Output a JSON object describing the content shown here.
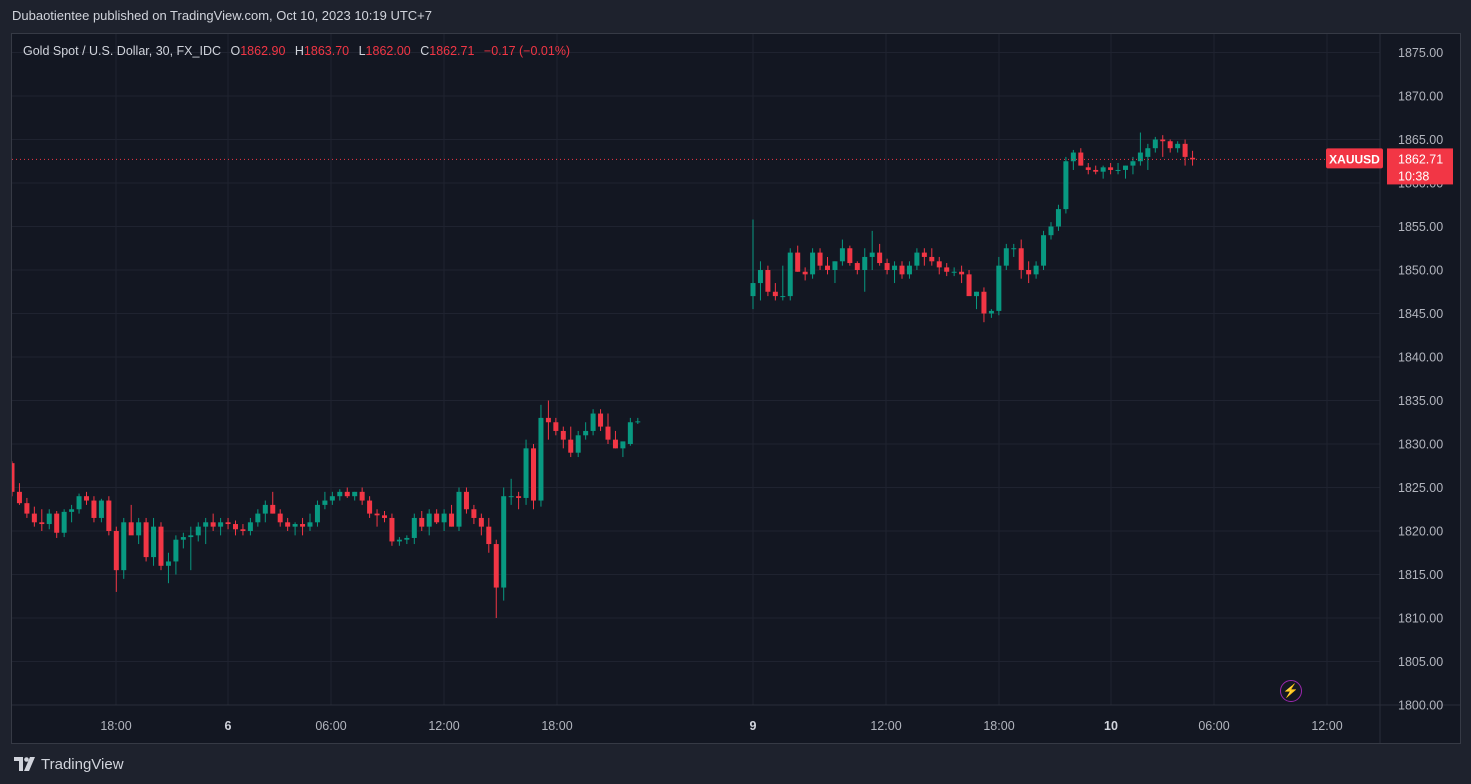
{
  "header": {
    "publisher_line": "Dubaotientee published on TradingView.com, Oct 10, 2023 10:19 UTC+7"
  },
  "legend": {
    "symbol_desc": "Gold Spot / U.S. Dollar, 30, FX_IDC",
    "o_label": "O",
    "o_value": "1862.90",
    "h_label": "H",
    "h_value": "1863.70",
    "l_label": "L",
    "l_value": "1862.00",
    "c_label": "C",
    "c_value": "1862.71",
    "change": "−0.17 (−0.01%)"
  },
  "price_tag": {
    "symbol": "XAUUSD",
    "price": "1862.71",
    "countdown": "10:38"
  },
  "footer": {
    "brand": "TradingView"
  },
  "colors": {
    "up": "#089981",
    "down": "#f23645",
    "background": "#131722",
    "grid": "#1f2330",
    "text": "#b2b5be"
  },
  "icons": {
    "footer_logo": "tradingview-logo-icon",
    "alert": "lightning-icon"
  },
  "chart_data": {
    "type": "candlestick",
    "title": "",
    "ylim": [
      1800,
      1877.5
    ],
    "y_ticks": [
      "1875.00",
      "1870.00",
      "1865.00",
      "1860.00",
      "1855.00",
      "1850.00",
      "1845.00",
      "1840.00",
      "1835.00",
      "1830.00",
      "1825.00",
      "1820.00",
      "1815.00",
      "1810.00",
      "1805.00",
      "1800.00"
    ],
    "x_ticks": [
      "18:00",
      "6",
      "06:00",
      "12:00",
      "18:00",
      "9",
      "12:00",
      "18:00",
      "10",
      "06:00",
      "12:00"
    ],
    "last_price": 1862.71,
    "sessions": [
      [
        [
          1827.8,
          1828.0,
          1824.0,
          1824.5
        ],
        [
          1824.5,
          1825.5,
          1823.0,
          1823.2
        ],
        [
          1823.2,
          1823.8,
          1821.5,
          1822.0
        ],
        [
          1822.0,
          1822.8,
          1820.5,
          1821.0
        ],
        [
          1821.0,
          1822.5,
          1820.0,
          1820.8
        ],
        [
          1820.8,
          1822.5,
          1820.2,
          1822.0
        ],
        [
          1822.0,
          1822.3,
          1819.2,
          1819.8
        ],
        [
          1819.8,
          1822.5,
          1819.3,
          1822.2
        ],
        [
          1822.2,
          1823.0,
          1821.0,
          1822.5
        ],
        [
          1822.5,
          1824.3,
          1822.0,
          1824.0
        ],
        [
          1824.0,
          1824.5,
          1823.0,
          1823.5
        ],
        [
          1823.5,
          1824.0,
          1821.0,
          1821.5
        ],
        [
          1821.5,
          1823.7,
          1821.0,
          1823.5
        ],
        [
          1823.5,
          1824.0,
          1819.5,
          1820.0
        ],
        [
          1820.0,
          1820.5,
          1813.0,
          1815.5
        ],
        [
          1815.5,
          1821.5,
          1814.5,
          1821.0
        ],
        [
          1821.0,
          1823.0,
          1820.0,
          1819.5
        ],
        [
          1819.5,
          1821.5,
          1818.5,
          1821.0
        ],
        [
          1821.0,
          1821.5,
          1816.5,
          1817.0
        ],
        [
          1817.0,
          1821.5,
          1816.0,
          1820.5
        ],
        [
          1820.5,
          1821.0,
          1815.5,
          1816.0
        ],
        [
          1816.0,
          1817.5,
          1814.0,
          1816.5
        ],
        [
          1816.5,
          1819.5,
          1815.0,
          1819.0
        ],
        [
          1819.0,
          1819.8,
          1818.0,
          1819.3
        ],
        [
          1819.3,
          1820.5,
          1815.5,
          1819.5
        ],
        [
          1819.5,
          1821.0,
          1818.8,
          1820.5
        ],
        [
          1820.5,
          1821.5,
          1818.5,
          1821.0
        ],
        [
          1821.0,
          1822.0,
          1820.0,
          1820.5
        ],
        [
          1820.5,
          1821.5,
          1819.5,
          1821.0
        ],
        [
          1821.0,
          1821.5,
          1820.2,
          1820.8
        ],
        [
          1820.8,
          1821.2,
          1819.5,
          1820.2
        ],
        [
          1820.2,
          1820.8,
          1819.5,
          1820.0
        ],
        [
          1820.0,
          1821.5,
          1819.5,
          1821.0
        ],
        [
          1821.0,
          1822.5,
          1820.5,
          1822.0
        ],
        [
          1822.0,
          1823.5,
          1821.0,
          1823.0
        ],
        [
          1823.0,
          1824.5,
          1822.0,
          1822.0
        ],
        [
          1822.0,
          1822.5,
          1820.5,
          1821.0
        ],
        [
          1821.0,
          1821.5,
          1820.0,
          1820.5
        ],
        [
          1820.5,
          1821.0,
          1819.5,
          1820.8
        ],
        [
          1820.8,
          1821.5,
          1819.5,
          1820.5
        ],
        [
          1820.5,
          1822.0,
          1820.0,
          1821.0
        ],
        [
          1821.0,
          1823.5,
          1820.5,
          1823.0
        ],
        [
          1823.0,
          1824.5,
          1822.5,
          1823.5
        ],
        [
          1823.5,
          1824.5,
          1823.0,
          1824.0
        ],
        [
          1824.0,
          1824.8,
          1823.5,
          1824.5
        ],
        [
          1824.5,
          1825.0,
          1823.8,
          1824.0
        ],
        [
          1824.0,
          1824.5,
          1823.5,
          1824.5
        ],
        [
          1824.5,
          1825.0,
          1823.0,
          1823.5
        ],
        [
          1823.5,
          1824.0,
          1821.5,
          1822.0
        ],
        [
          1822.0,
          1822.5,
          1820.5,
          1821.8
        ],
        [
          1821.8,
          1822.3,
          1821.0,
          1821.5
        ],
        [
          1821.5,
          1822.0,
          1818.3,
          1818.8
        ],
        [
          1818.8,
          1819.3,
          1818.3,
          1819.0
        ],
        [
          1819.0,
          1819.5,
          1818.5,
          1819.2
        ],
        [
          1819.2,
          1822.0,
          1818.5,
          1821.5
        ],
        [
          1821.5,
          1822.3,
          1820.0,
          1820.5
        ],
        [
          1820.5,
          1822.5,
          1819.5,
          1822.0
        ],
        [
          1822.0,
          1822.5,
          1820.8,
          1821.0
        ],
        [
          1821.0,
          1822.5,
          1820.0,
          1822.0
        ],
        [
          1822.0,
          1823.0,
          1820.5,
          1820.5
        ],
        [
          1820.5,
          1825.0,
          1820.0,
          1824.5
        ],
        [
          1824.5,
          1825.0,
          1822.0,
          1822.5
        ],
        [
          1822.5,
          1823.0,
          1820.8,
          1821.5
        ],
        [
          1821.5,
          1822.0,
          1819.5,
          1820.5
        ],
        [
          1820.5,
          1821.5,
          1817.5,
          1818.5
        ],
        [
          1818.5,
          1819.0,
          1810.0,
          1813.5
        ],
        [
          1813.5,
          1825.0,
          1812.0,
          1824.0
        ],
        [
          1824.0,
          1826.0,
          1823.0,
          1824.0
        ],
        [
          1824.0,
          1824.5,
          1822.5,
          1823.8
        ],
        [
          1823.8,
          1830.5,
          1823.0,
          1829.5
        ],
        [
          1829.5,
          1830.0,
          1822.5,
          1823.5
        ],
        [
          1823.5,
          1834.5,
          1822.8,
          1833.0
        ],
        [
          1833.0,
          1835.0,
          1830.5,
          1832.5
        ],
        [
          1832.5,
          1833.0,
          1831.0,
          1831.5
        ],
        [
          1831.5,
          1832.0,
          1829.5,
          1830.5
        ],
        [
          1830.5,
          1832.0,
          1828.5,
          1829.0
        ],
        [
          1829.0,
          1831.5,
          1828.5,
          1831.0
        ],
        [
          1831.0,
          1832.5,
          1830.5,
          1831.5
        ],
        [
          1831.5,
          1834.0,
          1831.0,
          1833.5
        ],
        [
          1833.5,
          1834.0,
          1831.5,
          1832.0
        ],
        [
          1832.0,
          1833.5,
          1830.0,
          1830.5
        ],
        [
          1830.5,
          1831.5,
          1829.5,
          1829.5
        ],
        [
          1829.5,
          1830.0,
          1828.5,
          1830.3
        ],
        [
          1830.0,
          1833.0,
          1829.8,
          1832.5
        ],
        [
          1832.5,
          1833.0,
          1832.3,
          1832.6
        ]
      ],
      [
        [
          1847.0,
          1855.8,
          1845.5,
          1848.5
        ],
        [
          1848.5,
          1851.0,
          1846.5,
          1850.0
        ],
        [
          1850.0,
          1850.5,
          1847.0,
          1847.5
        ],
        [
          1847.5,
          1848.5,
          1846.5,
          1847.0
        ],
        [
          1847.0,
          1850.5,
          1846.5,
          1847.0
        ],
        [
          1847.0,
          1852.5,
          1846.5,
          1852.0
        ],
        [
          1852.0,
          1852.8,
          1849.8,
          1849.8
        ],
        [
          1849.8,
          1850.3,
          1848.8,
          1849.5
        ],
        [
          1849.5,
          1852.5,
          1849.0,
          1852.0
        ],
        [
          1852.0,
          1852.5,
          1850.0,
          1850.5
        ],
        [
          1850.5,
          1851.5,
          1849.5,
          1850.0
        ],
        [
          1850.0,
          1851.0,
          1848.5,
          1851.0
        ],
        [
          1851.0,
          1853.5,
          1850.5,
          1852.5
        ],
        [
          1852.5,
          1852.8,
          1850.5,
          1850.8
        ],
        [
          1850.8,
          1851.0,
          1849.5,
          1850.0
        ],
        [
          1850.0,
          1852.5,
          1847.5,
          1851.5
        ],
        [
          1851.5,
          1854.5,
          1850.0,
          1852.0
        ],
        [
          1852.0,
          1853.0,
          1850.5,
          1850.8
        ],
        [
          1850.8,
          1851.3,
          1849.5,
          1850.0
        ],
        [
          1850.0,
          1851.0,
          1848.5,
          1850.5
        ],
        [
          1850.5,
          1851.0,
          1849.0,
          1849.5
        ],
        [
          1849.5,
          1851.0,
          1849.0,
          1850.5
        ],
        [
          1850.5,
          1852.5,
          1850.0,
          1852.0
        ],
        [
          1852.0,
          1852.5,
          1850.5,
          1851.5
        ],
        [
          1851.5,
          1852.5,
          1850.5,
          1851.0
        ],
        [
          1851.0,
          1851.5,
          1849.5,
          1850.3
        ],
        [
          1850.3,
          1850.8,
          1849.3,
          1849.8
        ],
        [
          1849.8,
          1850.3,
          1849.3,
          1849.8
        ],
        [
          1849.8,
          1850.5,
          1848.5,
          1849.5
        ],
        [
          1849.5,
          1850.0,
          1848.5,
          1847.0
        ],
        [
          1847.0,
          1847.5,
          1845.5,
          1847.5
        ],
        [
          1847.5,
          1848.0,
          1844.0,
          1845.0
        ],
        [
          1845.0,
          1845.5,
          1844.5,
          1845.3
        ],
        [
          1845.3,
          1851.5,
          1844.8,
          1850.5
        ],
        [
          1850.5,
          1853.0,
          1850.0,
          1852.5
        ],
        [
          1852.5,
          1853.0,
          1851.5,
          1852.5
        ],
        [
          1852.5,
          1853.5,
          1849.0,
          1850.0
        ],
        [
          1850.0,
          1851.0,
          1848.5,
          1849.5
        ],
        [
          1849.5,
          1851.0,
          1849.0,
          1850.5
        ],
        [
          1850.5,
          1854.5,
          1850.0,
          1854.0
        ],
        [
          1854.0,
          1855.5,
          1853.5,
          1855.0
        ],
        [
          1855.0,
          1857.5,
          1854.5,
          1857.0
        ],
        [
          1857.0,
          1863.0,
          1856.5,
          1862.5
        ],
        [
          1862.5,
          1863.8,
          1861.5,
          1863.5
        ],
        [
          1863.5,
          1864.0,
          1862.0,
          1862.0
        ],
        [
          1861.8,
          1862.3,
          1861.0,
          1861.5
        ],
        [
          1861.5,
          1862.0,
          1861.0,
          1861.3
        ],
        [
          1861.3,
          1862.0,
          1860.5,
          1861.8
        ],
        [
          1861.8,
          1862.3,
          1861.0,
          1861.5
        ],
        [
          1861.5,
          1862.3,
          1861.0,
          1861.5
        ],
        [
          1861.5,
          1862.0,
          1860.5,
          1862.0
        ],
        [
          1862.0,
          1863.0,
          1861.0,
          1862.5
        ],
        [
          1862.5,
          1865.8,
          1862.0,
          1863.5
        ],
        [
          1863.0,
          1864.5,
          1861.5,
          1864.0
        ],
        [
          1864.0,
          1865.3,
          1863.5,
          1865.0
        ],
        [
          1865.0,
          1865.5,
          1863.0,
          1864.8
        ],
        [
          1864.8,
          1865.0,
          1863.5,
          1864.0
        ],
        [
          1864.0,
          1864.8,
          1863.5,
          1864.5
        ],
        [
          1864.5,
          1865.0,
          1862.0,
          1863.0
        ],
        [
          1862.9,
          1863.7,
          1862.0,
          1862.71
        ]
      ]
    ]
  }
}
